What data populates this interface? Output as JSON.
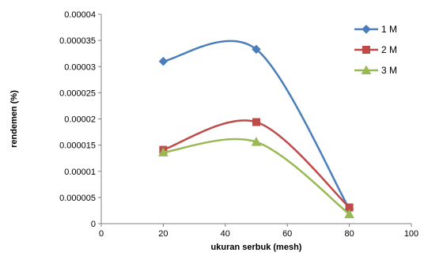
{
  "chart_data": {
    "type": "line",
    "smooth": true,
    "title": "",
    "xlabel": "ukuran serbuk (mesh)",
    "ylabel": "rendemen (%)",
    "xlim": [
      0,
      100
    ],
    "ylim": [
      0,
      4e-05
    ],
    "x_ticks": [
      "0",
      "20",
      "40",
      "60",
      "80",
      "100"
    ],
    "y_ticks": [
      "0",
      "0.000005",
      "0.00001",
      "0.000015",
      "0.00002",
      "0.000025",
      "0.00003",
      "0.000035",
      "0.00004"
    ],
    "grid": false,
    "legend_position": "top-right",
    "x": [
      20,
      50,
      80
    ],
    "series": [
      {
        "name": "1 M",
        "values": [
          3.1e-05,
          3.33e-05,
          2.8e-06
        ],
        "color": "#4a7ebb",
        "marker": "diamond"
      },
      {
        "name": "2 M",
        "values": [
          1.41e-05,
          1.94e-05,
          3.1e-06
        ],
        "color": "#be4b48",
        "marker": "square"
      },
      {
        "name": "3 M",
        "values": [
          1.36e-05,
          1.56e-05,
          1.8e-06
        ],
        "color": "#98b954",
        "marker": "triangle"
      }
    ]
  }
}
